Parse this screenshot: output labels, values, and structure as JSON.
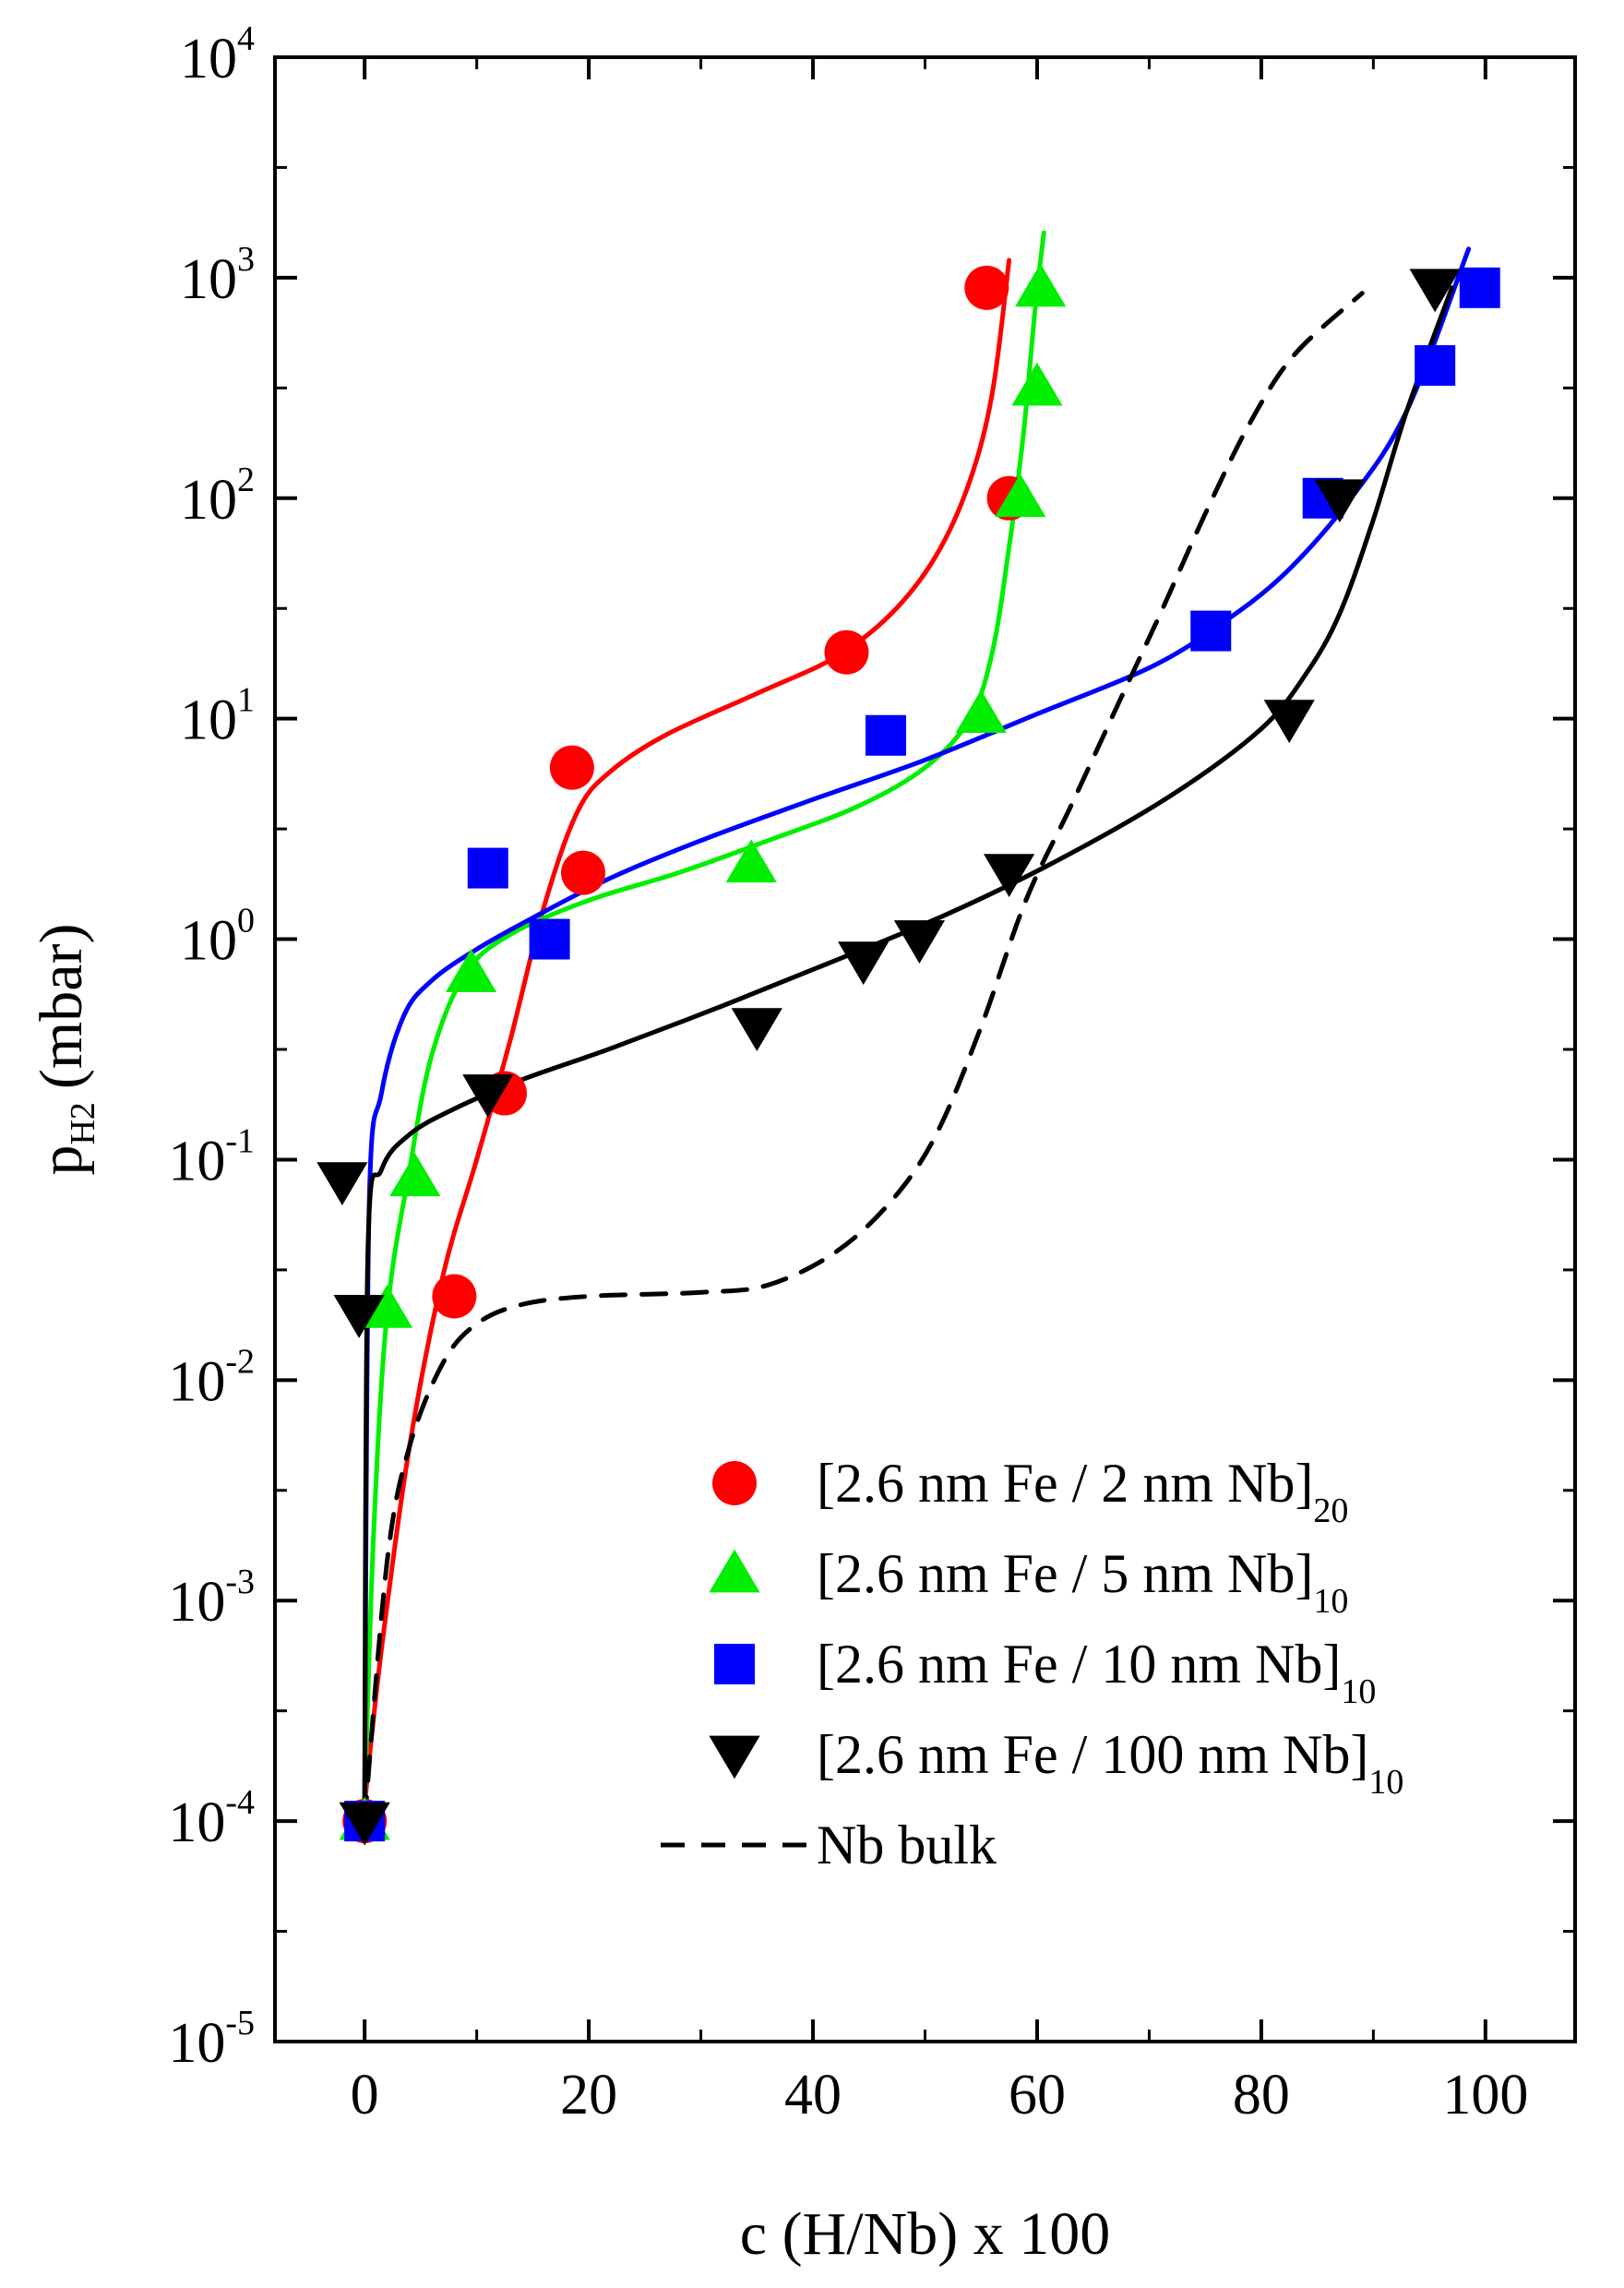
{
  "chart_data": {
    "type": "scatter",
    "title": "",
    "xlabel": "c (H/Nb) x 100",
    "ylabel": {
      "main": "p",
      "subscript": "H2",
      "unit": "(mbar)"
    },
    "xlim": [
      -8,
      108
    ],
    "ylim": [
      1e-05,
      10000.0
    ],
    "yscale": "log",
    "grid": false,
    "legend_position": "bottom-right",
    "x_ticks": [
      {
        "value": 0,
        "label": "0"
      },
      {
        "value": 20,
        "label": "20"
      },
      {
        "value": 40,
        "label": "40"
      },
      {
        "value": 60,
        "label": "60"
      },
      {
        "value": 80,
        "label": "80"
      },
      {
        "value": 100,
        "label": "100"
      }
    ],
    "y_ticks": [
      {
        "value": 1e-05,
        "base": "10",
        "exp": "-5"
      },
      {
        "value": 0.0001,
        "base": "10",
        "exp": "-4"
      },
      {
        "value": 0.001,
        "base": "10",
        "exp": "-3"
      },
      {
        "value": 0.01,
        "base": "10",
        "exp": "-2"
      },
      {
        "value": 0.1,
        "base": "10",
        "exp": "-1"
      },
      {
        "value": 1,
        "base": "10",
        "exp": "0"
      },
      {
        "value": 10,
        "base": "10",
        "exp": "1"
      },
      {
        "value": 100,
        "base": "10",
        "exp": "2"
      },
      {
        "value": 1000,
        "base": "10",
        "exp": "3"
      },
      {
        "value": 10000,
        "base": "10",
        "exp": "4"
      }
    ],
    "series": [
      {
        "name": "[2.6 nm Fe / 2 nm Nb]",
        "name_subscript": "20",
        "color": "#ff0000",
        "marker": "circle",
        "points": [
          [
            0,
            0.0001
          ],
          [
            8,
            0.024
          ],
          [
            12.5,
            0.2
          ],
          [
            18.5,
            6
          ],
          [
            19.5,
            2
          ],
          [
            43,
            20
          ],
          [
            55.5,
            900
          ],
          [
            57.5,
            100
          ]
        ],
        "fit": [
          [
            0,
            0.00012
          ],
          [
            1.5,
            0.0006
          ],
          [
            4,
            0.005
          ],
          [
            7,
            0.03
          ],
          [
            10,
            0.1
          ],
          [
            13,
            0.35
          ],
          [
            16,
            1.4
          ],
          [
            19,
            3.8
          ],
          [
            22,
            5.8
          ],
          [
            27,
            8.5
          ],
          [
            35,
            13
          ],
          [
            42,
            19
          ],
          [
            47,
            30
          ],
          [
            51,
            55
          ],
          [
            54,
            120
          ],
          [
            56,
            300
          ],
          [
            57.5,
            1200
          ]
        ]
      },
      {
        "name": "[2.6 nm Fe / 5 nm Nb]",
        "name_subscript": "10",
        "color": "#00ee00",
        "marker": "triangle-up",
        "points": [
          [
            0,
            0.0001
          ],
          [
            2,
            0.021
          ],
          [
            4.5,
            0.083
          ],
          [
            9.5,
            0.7
          ],
          [
            34.5,
            2.2
          ],
          [
            55,
            10.5
          ],
          [
            58.5,
            100
          ],
          [
            60,
            320
          ],
          [
            60.3,
            900
          ]
        ],
        "fit": [
          [
            0,
            0.00012
          ],
          [
            0.8,
            0.002
          ],
          [
            2,
            0.02
          ],
          [
            4,
            0.09
          ],
          [
            6,
            0.3
          ],
          [
            9,
            0.7
          ],
          [
            13,
            1.05
          ],
          [
            20,
            1.5
          ],
          [
            28,
            2
          ],
          [
            36,
            2.8
          ],
          [
            44,
            4
          ],
          [
            50,
            6
          ],
          [
            54,
            10
          ],
          [
            56,
            20
          ],
          [
            57.5,
            60
          ],
          [
            58.8,
            200
          ],
          [
            59.8,
            700
          ],
          [
            60.6,
            1600
          ]
        ]
      },
      {
        "name": "[2.6 nm Fe / 10 nm Nb]",
        "name_subscript": "10",
        "color": "#0000ff",
        "marker": "square",
        "points": [
          [
            0,
            0.0001
          ],
          [
            11,
            2.1
          ],
          [
            16.5,
            1
          ],
          [
            46.5,
            8.4
          ],
          [
            75.5,
            25
          ],
          [
            85.5,
            100
          ],
          [
            95.5,
            400
          ],
          [
            99.5,
            900
          ]
        ],
        "fit": [
          [
            0,
            0.00012
          ],
          [
            0.4,
            0.06
          ],
          [
            1.5,
            0.2
          ],
          [
            3.5,
            0.45
          ],
          [
            6,
            0.65
          ],
          [
            10,
            0.9
          ],
          [
            15,
            1.25
          ],
          [
            22,
            1.9
          ],
          [
            30,
            2.8
          ],
          [
            40,
            4.3
          ],
          [
            50,
            6.5
          ],
          [
            60,
            10.5
          ],
          [
            70,
            17
          ],
          [
            76,
            26
          ],
          [
            82,
            45
          ],
          [
            88,
            100
          ],
          [
            93,
            250
          ],
          [
            98.5,
            1350
          ]
        ]
      },
      {
        "name": "[2.6 nm Fe / 100 nm Nb]",
        "name_subscript": "10",
        "color": "#000000",
        "marker": "triangle-down",
        "points": [
          [
            -2,
            0.08
          ],
          [
            -0.5,
            0.02
          ],
          [
            0,
            0.0001
          ],
          [
            11,
            0.2
          ],
          [
            35,
            0.4
          ],
          [
            44.5,
            0.8
          ],
          [
            49.5,
            1
          ],
          [
            57.5,
            2
          ],
          [
            82.5,
            10
          ],
          [
            87,
            100
          ],
          [
            95.5,
            900
          ]
        ],
        "fit": [
          [
            0,
            0.00012
          ],
          [
            0.3,
            0.04
          ],
          [
            1.5,
            0.09
          ],
          [
            4,
            0.13
          ],
          [
            8,
            0.17
          ],
          [
            14,
            0.23
          ],
          [
            22,
            0.32
          ],
          [
            32,
            0.5
          ],
          [
            42,
            0.8
          ],
          [
            52,
            1.3
          ],
          [
            62,
            2.3
          ],
          [
            72,
            4.5
          ],
          [
            80,
            9
          ],
          [
            84,
            16
          ],
          [
            87,
            30
          ],
          [
            90,
            80
          ],
          [
            93,
            250
          ],
          [
            97,
            900
          ]
        ]
      },
      {
        "name": "Nb bulk",
        "color": "#000000",
        "marker": "none",
        "line_style": "dashed",
        "points": [],
        "fit": [
          [
            0,
            0.0001
          ],
          [
            2,
            0.0015
          ],
          [
            4,
            0.005
          ],
          [
            7,
            0.012
          ],
          [
            10,
            0.018
          ],
          [
            14,
            0.022
          ],
          [
            20,
            0.024
          ],
          [
            30,
            0.025
          ],
          [
            36,
            0.027
          ],
          [
            42,
            0.038
          ],
          [
            47,
            0.065
          ],
          [
            51,
            0.13
          ],
          [
            55,
            0.4
          ],
          [
            59,
            1.5
          ],
          [
            63,
            4
          ],
          [
            67,
            11
          ],
          [
            71,
            30
          ],
          [
            75,
            85
          ],
          [
            79,
            220
          ],
          [
            83,
            450
          ],
          [
            89,
            850
          ]
        ]
      }
    ]
  }
}
